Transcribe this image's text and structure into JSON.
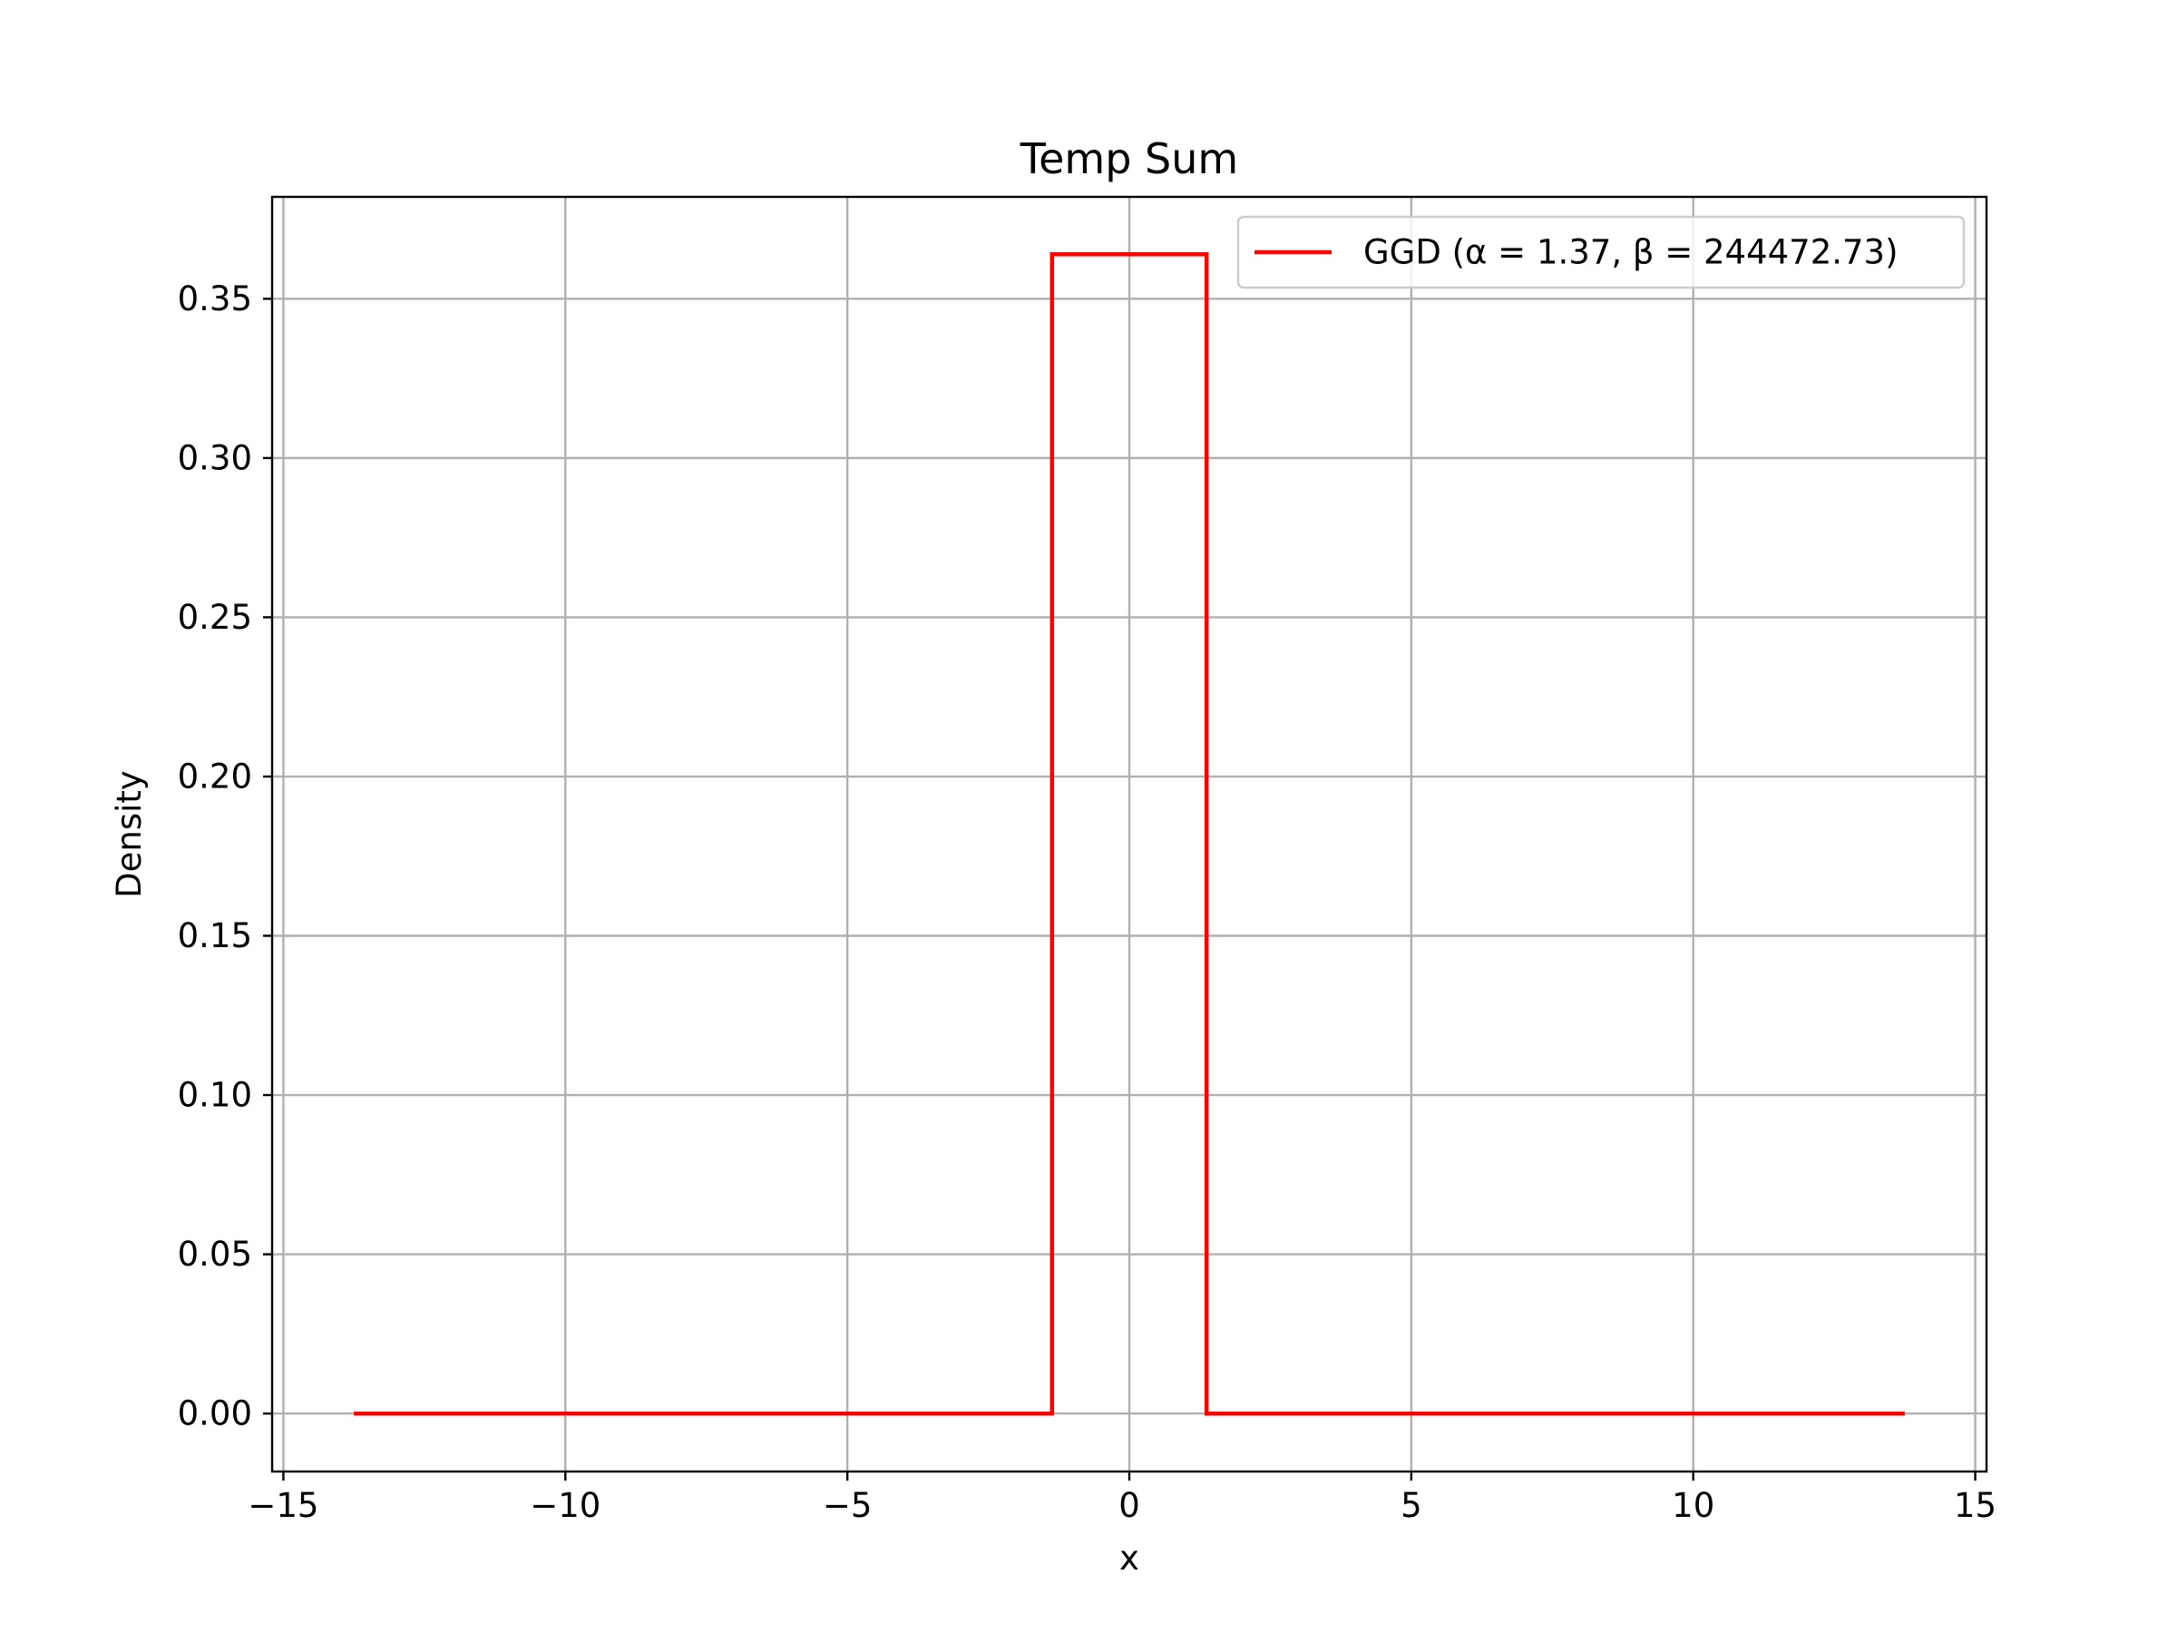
{
  "chart_data": {
    "type": "line",
    "title": "Temp Sum",
    "xlabel": "x",
    "ylabel": "Density",
    "xlim": [
      -15.2,
      15.2
    ],
    "ylim": [
      -0.0182,
      0.382
    ],
    "x_ticks": [
      -15,
      -10,
      -5,
      0,
      5,
      10,
      15
    ],
    "x_tick_labels": [
      "−15",
      "−10",
      "−5",
      "0",
      "5",
      "10",
      "15"
    ],
    "y_ticks": [
      0.0,
      0.05,
      0.1,
      0.15,
      0.2,
      0.25,
      0.3,
      0.35
    ],
    "y_tick_labels": [
      "0.00",
      "0.05",
      "0.10",
      "0.15",
      "0.20",
      "0.25",
      "0.30",
      "0.35"
    ],
    "grid": true,
    "legend_position": "top-right",
    "series": [
      {
        "name": "GGD (α = 1.37, β = 244472.73)",
        "color": "#ff0000",
        "x": [
          -13.75,
          -1.37,
          -1.37,
          1.37,
          1.37,
          13.75
        ],
        "y": [
          0.0,
          0.0,
          0.364,
          0.364,
          0.0,
          0.0
        ]
      }
    ]
  }
}
